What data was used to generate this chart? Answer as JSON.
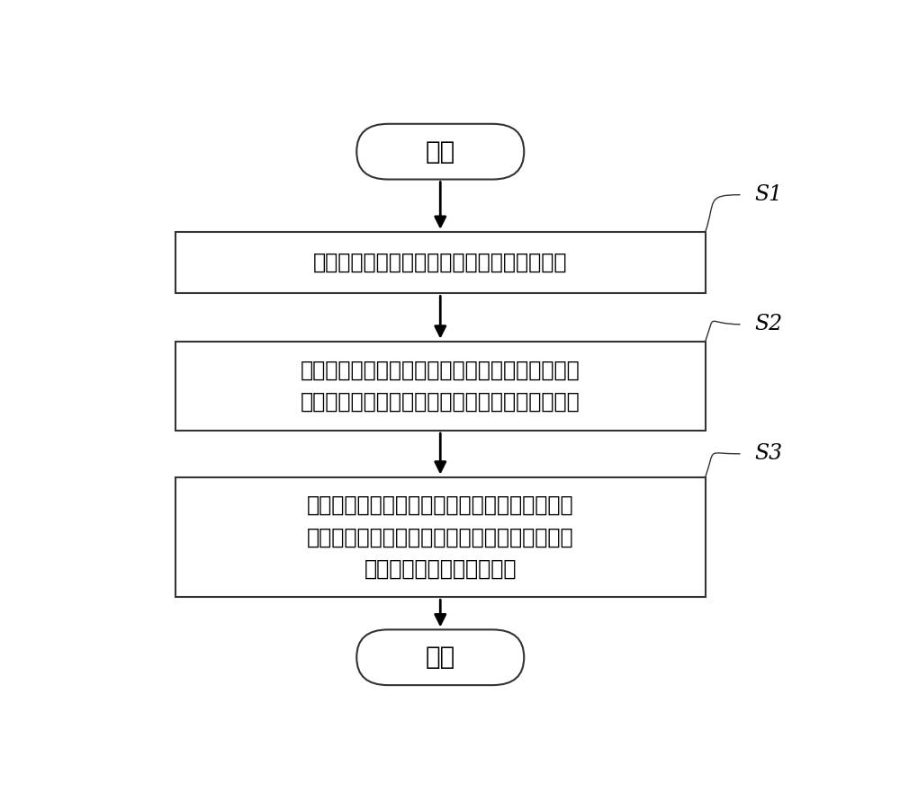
{
  "bg_color": "#ffffff",
  "border_color": "#333333",
  "text_color": "#000000",
  "arrow_color": "#000000",
  "start_text": "开始",
  "end_text": "结束",
  "box1_text": "电磁阀中的处理器实时获取电磁阀中线圈电流",
  "box2_line1": "提供一电流阙値，于线圈电流大于电流阙値时，判",
  "box2_line2": "定电磁阀中的电磁铁动作，即电磁铁产生吸合动作",
  "box3_line1": "提供一预设时间和一稳定电流値，于线圈电流大",
  "box3_line2": "于电流阙値并持续预设时间后，处理器控制线圈",
  "box3_line3": "电流大小降低至稳定电流値",
  "label_s1": "S1",
  "label_s2": "S2",
  "label_s3": "S3",
  "figsize": [
    10.0,
    8.91
  ]
}
